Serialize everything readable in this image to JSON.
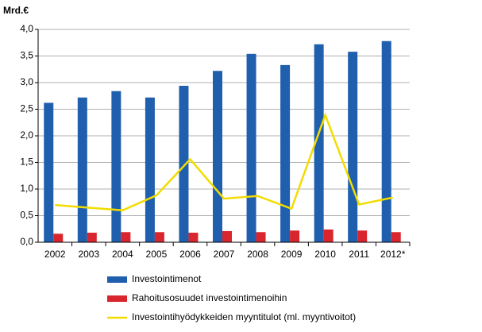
{
  "chart_data": {
    "type": "bar",
    "y_label": "Mrd.€",
    "categories": [
      "2002",
      "2003",
      "2004",
      "2005",
      "2006",
      "2007",
      "2008",
      "2009",
      "2010",
      "2011",
      "2012*"
    ],
    "series": [
      {
        "name": "Investointimenot",
        "color": "#1f5fad",
        "type": "bar",
        "values": [
          2.62,
          2.72,
          2.84,
          2.72,
          2.94,
          3.22,
          3.54,
          3.33,
          3.72,
          3.58,
          3.78
        ]
      },
      {
        "name": "Rahoitusosuudet investointimenoihin",
        "color": "#d9262e",
        "type": "bar",
        "values": [
          0.16,
          0.18,
          0.19,
          0.19,
          0.18,
          0.21,
          0.19,
          0.22,
          0.24,
          0.22,
          0.19
        ]
      },
      {
        "name": "Investointihyödykkeiden myyntitulot (ml. myyntivoitot)",
        "color": "#f2dc00",
        "type": "line",
        "values": [
          0.7,
          0.65,
          0.6,
          0.88,
          1.56,
          0.82,
          0.87,
          0.63,
          2.39,
          0.71,
          0.84
        ]
      }
    ],
    "ylim": [
      0,
      4
    ],
    "yticks": [
      {
        "value": 0,
        "label": "0,0"
      },
      {
        "value": 0.5,
        "label": "0,5"
      },
      {
        "value": 1,
        "label": "1,0"
      },
      {
        "value": 1.5,
        "label": "1,5"
      },
      {
        "value": 2,
        "label": "2,0"
      },
      {
        "value": 2.5,
        "label": "2,5"
      },
      {
        "value": 3,
        "label": "3,0"
      },
      {
        "value": 3.5,
        "label": "3,5"
      },
      {
        "value": 4,
        "label": "4,0"
      }
    ],
    "grid": true
  }
}
